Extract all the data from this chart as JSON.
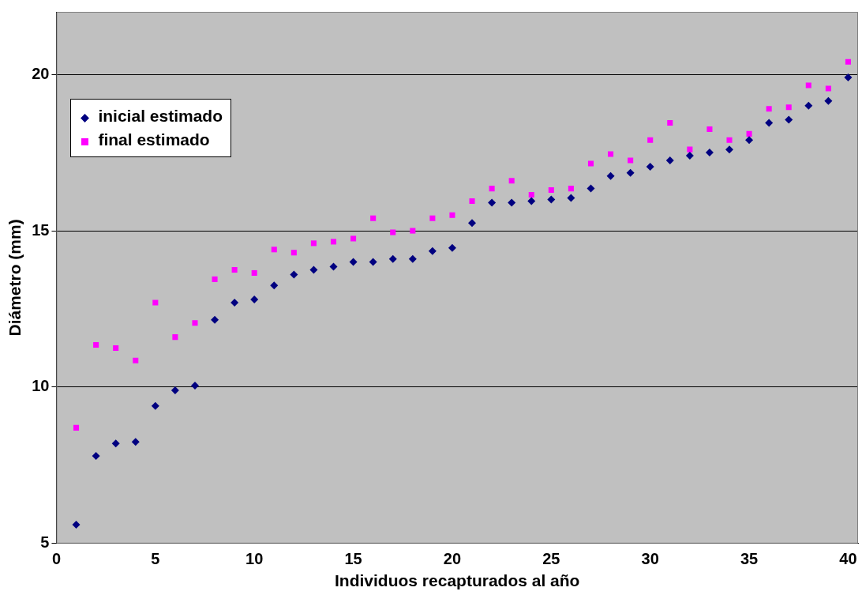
{
  "chart_data": {
    "type": "scatter",
    "xlabel": "Individuos recapturados al año",
    "ylabel": "Diámetro (mm)",
    "x": [
      1,
      2,
      3,
      4,
      5,
      6,
      7,
      8,
      9,
      10,
      11,
      12,
      13,
      14,
      15,
      16,
      17,
      18,
      19,
      20,
      21,
      22,
      23,
      24,
      25,
      26,
      27,
      28,
      29,
      30,
      31,
      32,
      33,
      34,
      35,
      36,
      37,
      38,
      39,
      40
    ],
    "series": [
      {
        "name": "inicial estimado",
        "color": "#000080",
        "marker": "diamond",
        "values": [
          5.6,
          7.8,
          8.2,
          8.25,
          9.4,
          9.9,
          10.05,
          12.15,
          12.7,
          12.8,
          13.25,
          13.6,
          13.75,
          13.85,
          14.0,
          14.0,
          14.1,
          14.1,
          14.35,
          14.45,
          15.25,
          15.9,
          15.9,
          15.95,
          16.0,
          16.05,
          16.35,
          16.75,
          16.85,
          17.05,
          17.25,
          17.4,
          17.5,
          17.6,
          17.9,
          18.45,
          18.55,
          19.0,
          19.15,
          19.9
        ]
      },
      {
        "name": "final estimado",
        "color": "#ff00ff",
        "marker": "square",
        "values": [
          8.7,
          11.35,
          11.25,
          10.85,
          12.7,
          11.6,
          12.05,
          13.45,
          13.75,
          13.65,
          14.4,
          14.3,
          14.6,
          14.65,
          14.75,
          15.4,
          14.95,
          15.0,
          15.4,
          15.5,
          15.95,
          16.35,
          16.6,
          16.15,
          16.3,
          16.35,
          17.15,
          17.45,
          17.25,
          17.9,
          18.45,
          17.6,
          18.25,
          17.9,
          18.1,
          18.9,
          18.95,
          19.65,
          19.55,
          20.4
        ]
      }
    ],
    "xlim": [
      0,
      40.5
    ],
    "xticks": [
      0,
      5,
      10,
      15,
      20,
      25,
      30,
      35,
      40
    ],
    "ylim": [
      5,
      22
    ],
    "yticks": [
      5,
      10,
      15,
      20
    ],
    "grid": "y",
    "legend": "top left"
  }
}
